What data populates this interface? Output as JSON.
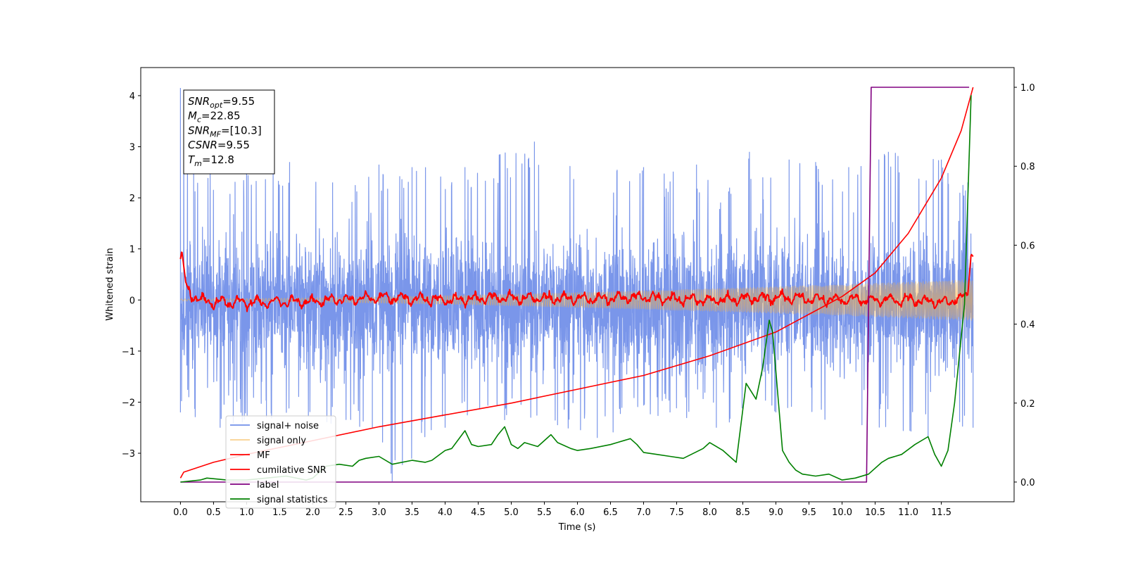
{
  "chart_data": {
    "type": "line",
    "xlabel": "Time (s)",
    "ylabel": "Whitened strain",
    "y2label": "",
    "xlim": [
      -0.6,
      12.6
    ],
    "ylim": [
      -3.95,
      4.55
    ],
    "y2lim": [
      -0.05,
      1.05
    ],
    "x_ticks": [
      0.0,
      0.5,
      1.0,
      1.5,
      2.0,
      2.5,
      3.0,
      3.5,
      4.0,
      4.5,
      5.0,
      5.5,
      6.0,
      6.5,
      7.0,
      7.5,
      8.0,
      8.5,
      9.0,
      9.5,
      10.0,
      10.5,
      11.0,
      11.5
    ],
    "x_tick_labels": [
      "0.0",
      "0.5",
      "1.0",
      "1.5",
      "2.0",
      "2.5",
      "3.0",
      "3.5",
      "4.0",
      "4.5",
      "5.0",
      "5.5",
      "6.0",
      "6.5",
      "7.0",
      "7.5",
      "8.0",
      "8.5",
      "9.0",
      "9.5",
      "10.0",
      "10.5",
      "11.0",
      "11.5"
    ],
    "y_ticks": [
      -3,
      -2,
      -1,
      0,
      1,
      2,
      3,
      4
    ],
    "y_tick_labels": [
      "−3",
      "−2",
      "−1",
      "0",
      "1",
      "2",
      "3",
      "4"
    ],
    "y2_ticks": [
      0.0,
      0.2,
      0.4,
      0.6,
      0.8,
      1.0
    ],
    "y2_tick_labels": [
      "0.0",
      "0.2",
      "0.4",
      "0.6",
      "0.8",
      "1.0"
    ],
    "grid": false,
    "legend_position": "bottom-left",
    "annotation_lines": [
      {
        "sym": "SNR",
        "sub": "opt",
        "rest": "=9.55"
      },
      {
        "sym": "M",
        "sub": "c",
        "rest": "=22.85"
      },
      {
        "sym": "SNR",
        "sub": "MF",
        "rest": "=[10.3]"
      },
      {
        "sym": "CSNR",
        "sub": "",
        "rest": "=9.55"
      },
      {
        "sym": "T",
        "sub": "m",
        "rest": "=12.8"
      }
    ],
    "series": [
      {
        "name": "signal+ noise",
        "color": "#4169e1",
        "axis": "left",
        "kind": "noise",
        "x_range": [
          0.0,
          11.98
        ],
        "band_center": -0.1,
        "band_typical": [
          -1.5,
          1.4
        ],
        "peaks_x": [
          0.0,
          0.2,
          1.0,
          1.65,
          2.3,
          3.0,
          3.5,
          4.3,
          5.35,
          6.6,
          7.0,
          7.8,
          8.3,
          8.6,
          9.2,
          9.6,
          10.1,
          10.7,
          11.5,
          11.9
        ],
        "peaks_y": [
          4.15,
          2.6,
          2.5,
          2.7,
          2.3,
          2.65,
          2.6,
          2.6,
          3.1,
          2.55,
          2.6,
          2.65,
          2.2,
          2.9,
          2.75,
          2.7,
          2.6,
          2.9,
          2.75,
          2.3
        ],
        "troughs_x": [
          0.0,
          0.6,
          1.3,
          2.9,
          3.2,
          4.0,
          4.9,
          5.7,
          6.3,
          7.4,
          8.1,
          9.0,
          10.3,
          11.3,
          11.98
        ],
        "troughs_y": [
          -2.2,
          -2.5,
          -2.3,
          -2.5,
          -3.55,
          -2.5,
          -2.35,
          -2.45,
          -2.7,
          -2.2,
          -2.5,
          -2.2,
          -2.45,
          -2.7,
          -2.5
        ]
      },
      {
        "name": "signal only",
        "color": "#f5b041",
        "axis": "left",
        "kind": "chirp",
        "x_range": [
          0.0,
          11.98
        ],
        "amp_start": 0.02,
        "amp_end": 0.4
      },
      {
        "name": "MF",
        "color": "#ff0000",
        "axis": "left",
        "kind": "mf",
        "x": [
          0.0,
          0.02,
          0.08,
          0.15,
          0.3,
          0.5,
          1.0,
          2.0,
          3.0,
          4.0,
          5.0,
          6.0,
          7.0,
          8.0,
          9.0,
          10.0,
          11.0,
          11.6,
          11.9,
          11.95,
          11.98
        ],
        "y": [
          0.8,
          0.97,
          0.35,
          0.1,
          0.0,
          -0.05,
          -0.05,
          -0.03,
          0.05,
          0.0,
          0.05,
          0.02,
          0.05,
          0.0,
          0.05,
          0.0,
          0.0,
          -0.05,
          0.1,
          0.9,
          0.85
        ]
      },
      {
        "name": "cumilative SNR",
        "color": "#ff0000",
        "axis": "right",
        "kind": "line",
        "x": [
          0.0,
          0.05,
          0.5,
          1.0,
          2.0,
          3.0,
          4.0,
          5.0,
          6.0,
          7.0,
          8.0,
          9.0,
          10.0,
          10.5,
          11.0,
          11.5,
          11.8,
          11.98
        ],
        "y": [
          0.01,
          0.025,
          0.05,
          0.07,
          0.105,
          0.14,
          0.17,
          0.2,
          0.235,
          0.27,
          0.32,
          0.38,
          0.47,
          0.53,
          0.63,
          0.77,
          0.89,
          1.0
        ]
      },
      {
        "name": "label",
        "color": "#800080",
        "axis": "right",
        "kind": "line",
        "x": [
          0.0,
          10.37,
          10.44,
          11.92
        ],
        "y": [
          0.0,
          0.0,
          1.0,
          1.0
        ]
      },
      {
        "name": "signal statistics",
        "color": "#008000",
        "axis": "right",
        "kind": "line",
        "x": [
          0.0,
          0.3,
          0.4,
          0.7,
          1.0,
          1.3,
          1.6,
          1.9,
          2.0,
          2.2,
          2.4,
          2.6,
          2.7,
          2.8,
          3.0,
          3.2,
          3.5,
          3.7,
          3.8,
          4.0,
          4.1,
          4.3,
          4.4,
          4.5,
          4.7,
          4.8,
          4.9,
          5.0,
          5.1,
          5.2,
          5.4,
          5.6,
          5.7,
          5.9,
          6.0,
          6.2,
          6.5,
          6.6,
          6.8,
          6.9,
          7.0,
          7.2,
          7.4,
          7.6,
          7.9,
          8.0,
          8.2,
          8.4,
          8.55,
          8.7,
          8.8,
          8.9,
          8.95,
          9.1,
          9.2,
          9.3,
          9.4,
          9.6,
          9.8,
          10.0,
          10.2,
          10.4,
          10.6,
          10.7,
          10.9,
          11.1,
          11.3,
          11.4,
          11.5,
          11.6,
          11.7,
          11.85,
          11.95
        ],
        "y": [
          0.0,
          0.005,
          0.01,
          0.005,
          0.005,
          0.01,
          0.015,
          0.005,
          0.01,
          0.04,
          0.045,
          0.04,
          0.055,
          0.06,
          0.065,
          0.045,
          0.055,
          0.05,
          0.055,
          0.08,
          0.085,
          0.13,
          0.095,
          0.09,
          0.095,
          0.12,
          0.14,
          0.095,
          0.085,
          0.1,
          0.09,
          0.12,
          0.1,
          0.085,
          0.08,
          0.085,
          0.095,
          0.1,
          0.11,
          0.095,
          0.075,
          0.07,
          0.065,
          0.06,
          0.085,
          0.1,
          0.08,
          0.05,
          0.25,
          0.21,
          0.29,
          0.41,
          0.38,
          0.08,
          0.05,
          0.03,
          0.02,
          0.015,
          0.02,
          0.005,
          0.01,
          0.02,
          0.05,
          0.06,
          0.07,
          0.095,
          0.115,
          0.07,
          0.04,
          0.08,
          0.2,
          0.45,
          0.98
        ]
      }
    ]
  }
}
